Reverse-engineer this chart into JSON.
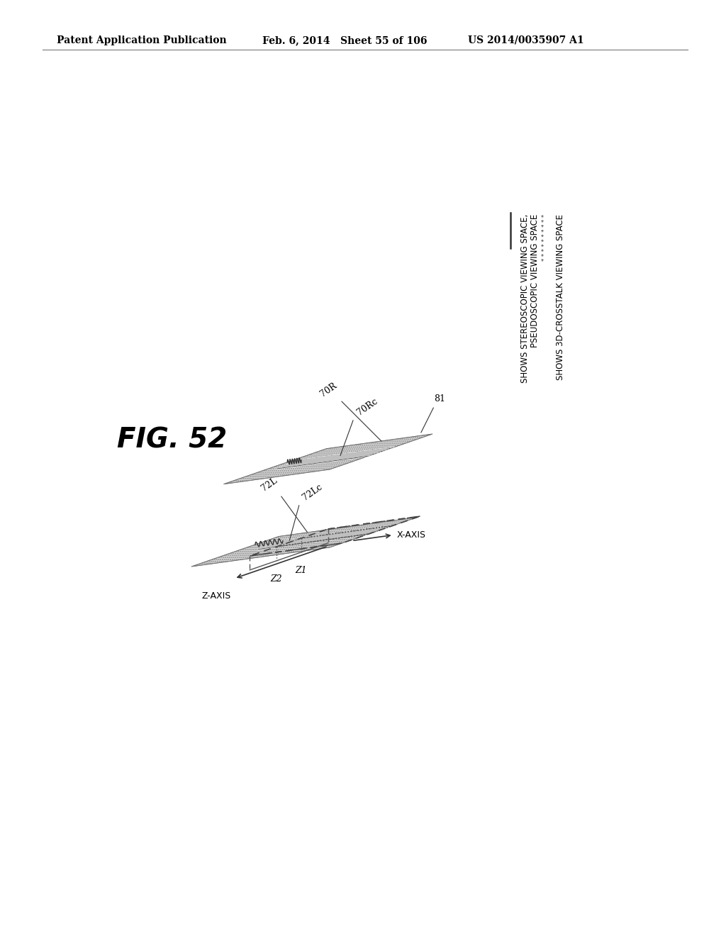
{
  "header_left": "Patent Application Publication",
  "header_mid": "Feb. 6, 2014   Sheet 55 of 106",
  "header_right": "US 2014/0035907 A1",
  "fig_label": "FIG. 52",
  "legend_line1": "SHOWS STEREOSCOPIC VIEWING SPACE,",
  "legend_line2": "PSEUDOSCOPIC VIEWING SPACE",
  "legend_line3": "SHOWS 3D-CROSSTALK VIEWING SPACE",
  "label_70R": "70R",
  "label_70Rc": "70Rc",
  "label_72L": "72L",
  "label_72Lc": "72Lc",
  "label_81": "81",
  "label_xaxis": "X-AXIS",
  "label_zaxis": "Z-AXIS",
  "label_z1": "Z1",
  "label_z2": "Z2",
  "bg_color": "#ffffff",
  "line_color": "#555555"
}
